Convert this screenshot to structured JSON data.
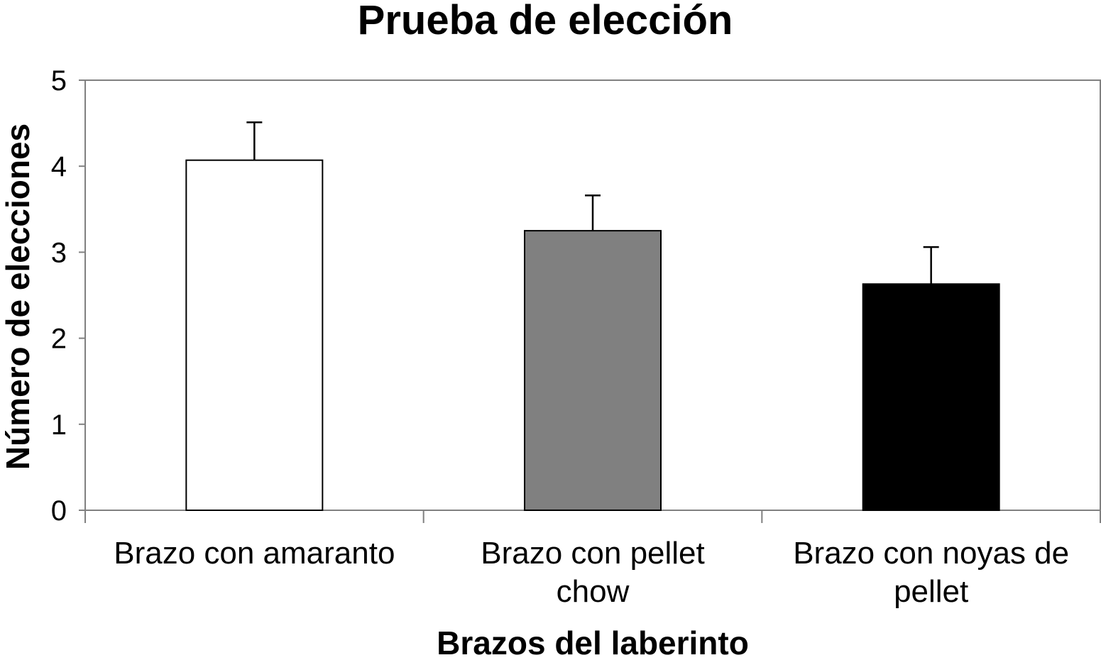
{
  "chart_data": {
    "type": "bar",
    "title": "Prueba de elección",
    "xlabel": "Brazos del laberinto",
    "ylabel": "Número de elecciones",
    "ylim": [
      0,
      5
    ],
    "yticks": [
      "0",
      "1",
      "2",
      "3",
      "4",
      "5"
    ],
    "grid": false,
    "categories": [
      [
        "Brazo con amaranto"
      ],
      [
        "Brazo con pellet",
        "chow"
      ],
      [
        "Brazo con noyas de",
        "pellet"
      ]
    ],
    "values": [
      4.07,
      3.25,
      2.63
    ],
    "error_upper": [
      0.44,
      0.41,
      0.43
    ],
    "colors": [
      "#ffffff",
      "#808080",
      "#000000"
    ]
  }
}
